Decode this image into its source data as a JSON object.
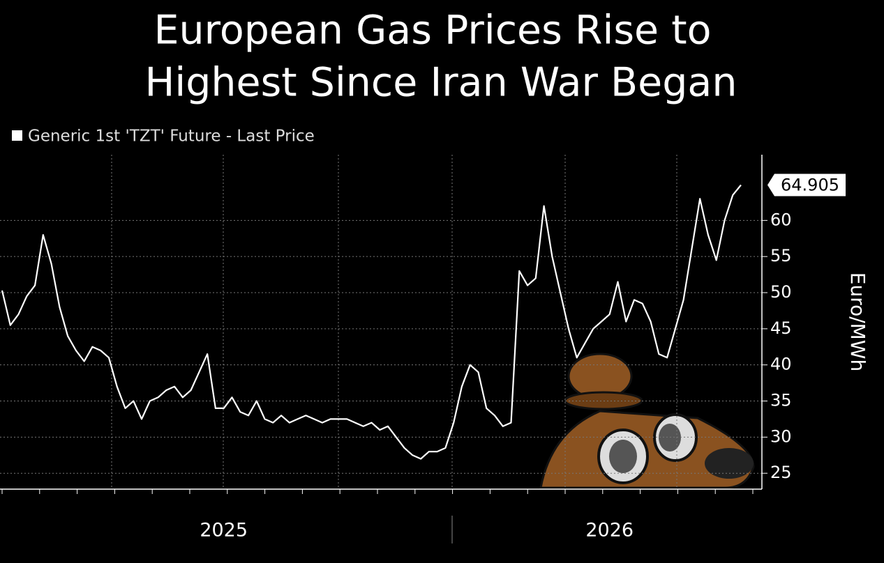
{
  "chart_data": {
    "type": "line",
    "title": [
      "European Gas Prices Rise to",
      "Highest Since Iran War Began"
    ],
    "y_label": "Euro/MWh",
    "categories": [
      null,
      null,
      null,
      null,
      null,
      null,
      null,
      null,
      null,
      null,
      null,
      null,
      null,
      null,
      null,
      null,
      null,
      null,
      null,
      null,
      null,
      null,
      null,
      null,
      null,
      null,
      null,
      "2025",
      null,
      null,
      null,
      null,
      null,
      null,
      null,
      null,
      null,
      null,
      null,
      null,
      null,
      null,
      null,
      null,
      null,
      null,
      null,
      null,
      null,
      null,
      null,
      null,
      null,
      null,
      null,
      null,
      null,
      null,
      null,
      null,
      null,
      null,
      null,
      null,
      null,
      null,
      null,
      null,
      null,
      null,
      null,
      null,
      null,
      null,
      "2026",
      null,
      null,
      null,
      null,
      null,
      null,
      null,
      null,
      null,
      null,
      null,
      null,
      null,
      null,
      null,
      null
    ],
    "series": [
      {
        "name": "Generic 1st 'TZT' Future - Last Price",
        "color": "#ffffff",
        "values": [
          50.3,
          45.5,
          47,
          49.5,
          51,
          58,
          54,
          48,
          44,
          42,
          40.5,
          42.5,
          42,
          41,
          37,
          34,
          35,
          32.5,
          35,
          35.5,
          36.5,
          37,
          35.5,
          36.5,
          39,
          41.5,
          34,
          34,
          35.5,
          33.5,
          33,
          35,
          32.5,
          32,
          33,
          32,
          32.5,
          33,
          32.5,
          32,
          32.5,
          32.5,
          32.5,
          32,
          31.5,
          32,
          31,
          31.5,
          30,
          28.5,
          27.5,
          27,
          28,
          28,
          28.5,
          32,
          37,
          40,
          39,
          34,
          33,
          31.5,
          32,
          53,
          51,
          52,
          62,
          55,
          50,
          45,
          41,
          43,
          45,
          46,
          47,
          51.5,
          46,
          49,
          48.5,
          46,
          41.5,
          41,
          45,
          49,
          56,
          63,
          58,
          54.5,
          60,
          63.5,
          64.905
        ]
      }
    ],
    "ylim": [
      22.8,
      69.1
    ],
    "yticks": [
      25,
      30,
      35,
      40,
      45,
      50,
      55,
      60
    ],
    "grid": true
  }
}
